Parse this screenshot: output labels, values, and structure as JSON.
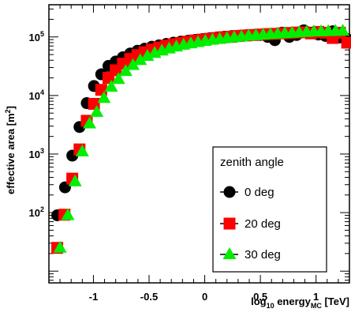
{
  "chart_data": {
    "type": "scatter",
    "xlabel": "log10 energyMC [TeV]",
    "ylabel": "effective area [m2]",
    "xlim": [
      -1.4,
      1.3
    ],
    "ylim_log10": [
      0.8,
      5.55
    ],
    "y_scale": "log",
    "x_ticks": [
      -1,
      -0.5,
      0,
      0.5,
      1
    ],
    "x_tick_labels": [
      "-1",
      "-0.5",
      "0",
      "0.5",
      "1"
    ],
    "y_ticks": [
      100,
      1000,
      10000,
      100000
    ],
    "grid": false,
    "legend": {
      "title": "zenith angle",
      "placement": "bottom-right"
    },
    "series": [
      {
        "name": "0 deg",
        "marker": "circle",
        "color": "#000000",
        "x": [
          -1.325,
          -1.255,
          -1.19,
          -1.125,
          -1.06,
          -0.995,
          -0.93,
          -0.865,
          -0.8,
          -0.735,
          -0.67,
          -0.605,
          -0.54,
          -0.475,
          -0.41,
          -0.345,
          -0.28,
          -0.215,
          -0.15,
          -0.085,
          -0.02,
          0.045,
          0.11,
          0.175,
          0.24,
          0.305,
          0.37,
          0.435,
          0.5,
          0.565,
          0.63,
          0.695,
          0.76,
          0.825,
          0.89,
          0.955,
          1.02,
          1.085,
          1.15,
          1.215,
          1.28
        ],
        "y": [
          90,
          270,
          940,
          2900,
          7400,
          14500,
          23000,
          32000,
          38000,
          45000,
          52000,
          58000,
          63000,
          68000,
          72000,
          76000,
          80000,
          83000,
          86000,
          89000,
          92000,
          95000,
          98000,
          101000,
          103000,
          105000,
          107000,
          108000,
          108000,
          100000,
          88000,
          118000,
          100000,
          108000,
          130000,
          118000,
          110000,
          104000,
          125000,
          98000,
          92000
        ]
      },
      {
        "name": "20 deg",
        "marker": "square",
        "color": "#ff0000",
        "x": [
          -1.325,
          -1.26,
          -1.19,
          -1.125,
          -1.06,
          -0.995,
          -0.93,
          -0.865,
          -0.8,
          -0.735,
          -0.67,
          -0.605,
          -0.54,
          -0.475,
          -0.41,
          -0.345,
          -0.28,
          -0.215,
          -0.15,
          -0.085,
          -0.02,
          0.045,
          0.11,
          0.175,
          0.24,
          0.305,
          0.37,
          0.435,
          0.5,
          0.565,
          0.63,
          0.695,
          0.76,
          0.825,
          0.89,
          0.955,
          1.02,
          1.085,
          1.15,
          1.215,
          1.28
        ],
        "y": [
          25,
          92,
          380,
          1200,
          3700,
          7200,
          12500,
          20000,
          27000,
          35000,
          42000,
          49000,
          55000,
          61000,
          66000,
          71000,
          75000,
          79000,
          83000,
          87000,
          90000,
          93000,
          96000,
          99000,
          101000,
          104000,
          106000,
          108000,
          110000,
          112000,
          113000,
          115000,
          117000,
          119000,
          120000,
          115000,
          122000,
          118000,
          96000,
          118000,
          80000
        ]
      },
      {
        "name": "30 deg",
        "marker": "triangle",
        "color": "#00ee00",
        "x": [
          -1.3,
          -1.23,
          -1.165,
          -1.1,
          -1.035,
          -0.97,
          -0.905,
          -0.84,
          -0.775,
          -0.71,
          -0.645,
          -0.58,
          -0.515,
          -0.45,
          -0.385,
          -0.32,
          -0.255,
          -0.19,
          -0.125,
          -0.06,
          0.005,
          0.07,
          0.135,
          0.2,
          0.265,
          0.33,
          0.395,
          0.46,
          0.525,
          0.59,
          0.655,
          0.72,
          0.785,
          0.85,
          0.915,
          0.98,
          1.045,
          1.11,
          1.175,
          1.24
        ],
        "y": [
          25,
          90,
          340,
          1100,
          3300,
          5200,
          9000,
          14000,
          19000,
          26000,
          33000,
          40000,
          47000,
          53000,
          58000,
          63000,
          68000,
          73000,
          77000,
          81000,
          85000,
          89000,
          92000,
          95000,
          98000,
          101000,
          104000,
          106000,
          109000,
          111000,
          113000,
          115000,
          117000,
          119000,
          121000,
          123000,
          124000,
          125000,
          126000,
          127000
        ]
      }
    ]
  }
}
